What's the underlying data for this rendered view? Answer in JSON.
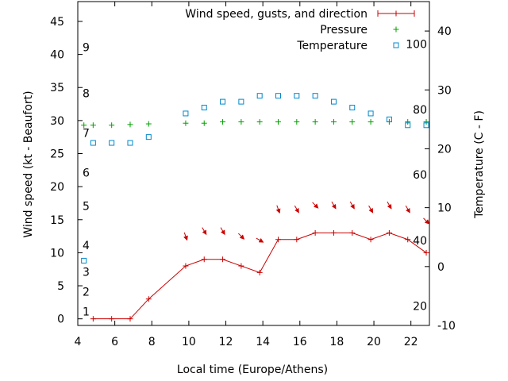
{
  "chart_data": {
    "type": "line",
    "xlabel": "Local time (Europe/Athens)",
    "ylabel_left": "Wind speed (kt - Beaufort)",
    "ylabel_right": "Temperature (C - F)",
    "xlim": [
      4,
      23
    ],
    "ylim_left": [
      -1,
      48
    ],
    "ylim_right": [
      -10,
      45
    ],
    "x_ticks": [
      4,
      6,
      8,
      10,
      12,
      14,
      16,
      18,
      20,
      22
    ],
    "y_left_ticks": [
      0,
      5,
      10,
      15,
      20,
      25,
      30,
      35,
      40,
      45
    ],
    "y_right_ticks": [
      -10,
      0,
      10,
      20,
      30,
      40
    ],
    "beaufort_labels": [
      {
        "label": "1",
        "y": 1.1
      },
      {
        "label": "2",
        "y": 4.1
      },
      {
        "label": "3",
        "y": 7.1
      },
      {
        "label": "4",
        "y": 11.1
      },
      {
        "label": "5",
        "y": 17.1
      },
      {
        "label": "6",
        "y": 22.1
      },
      {
        "label": "7",
        "y": 28.1
      },
      {
        "label": "8",
        "y": 34.1
      },
      {
        "label": "9",
        "y": 41.1
      }
    ],
    "fahrenheit_labels": [
      {
        "label": "20",
        "y": -6.7
      },
      {
        "label": "40",
        "y": 4.4
      },
      {
        "label": "60",
        "y": 15.6
      },
      {
        "label": "80",
        "y": 26.7
      },
      {
        "label": "100",
        "y": 37.8
      }
    ],
    "legend_position": "top-right",
    "grid": false,
    "series": [
      {
        "name": "Wind speed, gusts, and direction",
        "color": "#cc0000",
        "axis": "left",
        "marker": "plus-line",
        "x": [
          4.83,
          5.83,
          6.83,
          7.83,
          9.83,
          10.83,
          11.83,
          12.83,
          13.83,
          14.83,
          15.83,
          16.83,
          17.83,
          18.83,
          19.83,
          20.83,
          21.83,
          22.83
        ],
        "y": [
          0,
          0,
          0,
          3,
          8,
          9,
          9,
          8,
          7,
          12,
          12,
          13,
          13,
          13,
          12,
          13,
          12,
          10
        ]
      },
      {
        "name": "Wind direction",
        "color": "#cc0000",
        "axis": "left",
        "marker": "arrow",
        "x": [
          9.83,
          10.83,
          11.83,
          12.83,
          13.83,
          14.83,
          15.83,
          16.83,
          17.83,
          18.83,
          19.83,
          20.83,
          21.83,
          22.83
        ],
        "y": [
          12.5,
          13.3,
          13.3,
          12.5,
          11.9,
          16.6,
          16.6,
          17.2,
          17.2,
          17.2,
          16.6,
          17.2,
          16.6,
          14.8
        ],
        "direction_deg": [
          340,
          330,
          330,
          315,
          300,
          340,
          330,
          315,
          330,
          330,
          330,
          330,
          330,
          315
        ]
      },
      {
        "name": "Pressure",
        "color": "#00a000",
        "axis": "left",
        "marker": "plus",
        "x": [
          4.33,
          4.83,
          5.83,
          6.83,
          7.83,
          9.83,
          10.83,
          11.83,
          12.83,
          13.83,
          14.83,
          15.83,
          16.83,
          17.83,
          18.83,
          19.83,
          20.83,
          21.83,
          22.83
        ],
        "y": [
          29.3,
          29.3,
          29.3,
          29.4,
          29.5,
          29.6,
          29.6,
          29.8,
          29.8,
          29.8,
          29.8,
          29.8,
          29.8,
          29.8,
          29.8,
          29.8,
          29.8,
          29.8,
          29.8
        ]
      },
      {
        "name": "Temperature",
        "color": "#0088cc",
        "axis": "right",
        "marker": "square",
        "x": [
          4.33,
          4.83,
          5.83,
          6.83,
          7.83,
          9.83,
          10.83,
          11.83,
          12.83,
          13.83,
          14.83,
          15.83,
          16.83,
          17.83,
          18.83,
          19.83,
          20.83,
          21.83,
          22.83
        ],
        "y": [
          1,
          21,
          21,
          21,
          22,
          26,
          27,
          28,
          28,
          29,
          29,
          29,
          29,
          28,
          27,
          26,
          25,
          24,
          24
        ]
      }
    ]
  }
}
